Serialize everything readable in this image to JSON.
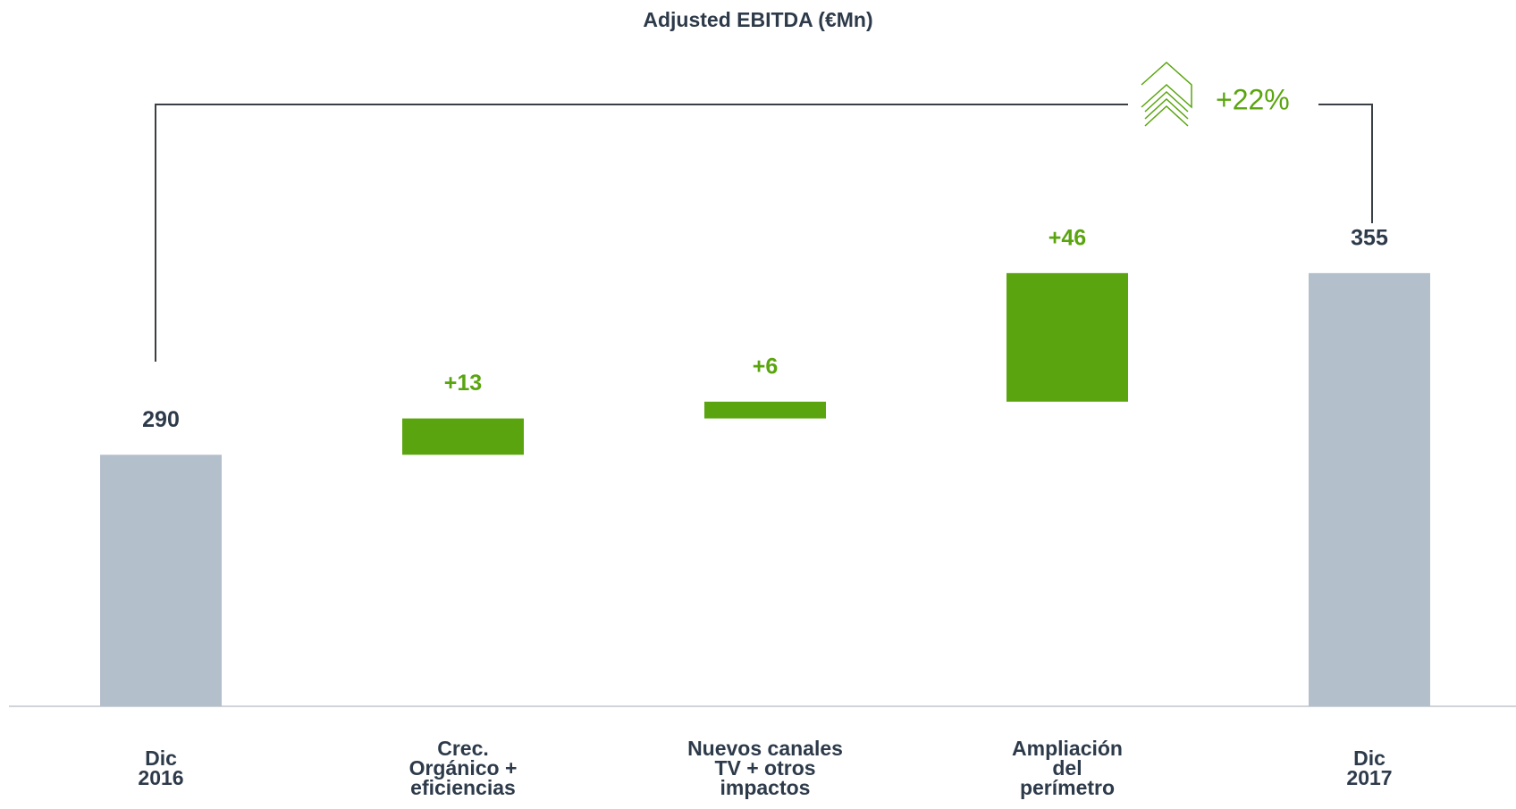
{
  "chart_data": {
    "type": "waterfall",
    "title": "Adjusted EBITDA (€Mn)",
    "categories": [
      "Dic\n2016",
      "Crec.\nOrgánico +\neficiencias",
      "Nuevos canales\nTV + otros\nimpactos",
      "Ampliación\ndel\nperímetro",
      "Dic\n2017"
    ],
    "values": [
      290,
      13,
      6,
      46,
      355
    ],
    "value_labels": [
      "290",
      "+13",
      "+6",
      "+46",
      "355"
    ],
    "totals": [
      true,
      false,
      false,
      false,
      true
    ],
    "total_color": "#b4bfcc",
    "delta_color": "#5aa50f",
    "ylim": [
      200,
      400
    ],
    "annotation": "+22%"
  }
}
